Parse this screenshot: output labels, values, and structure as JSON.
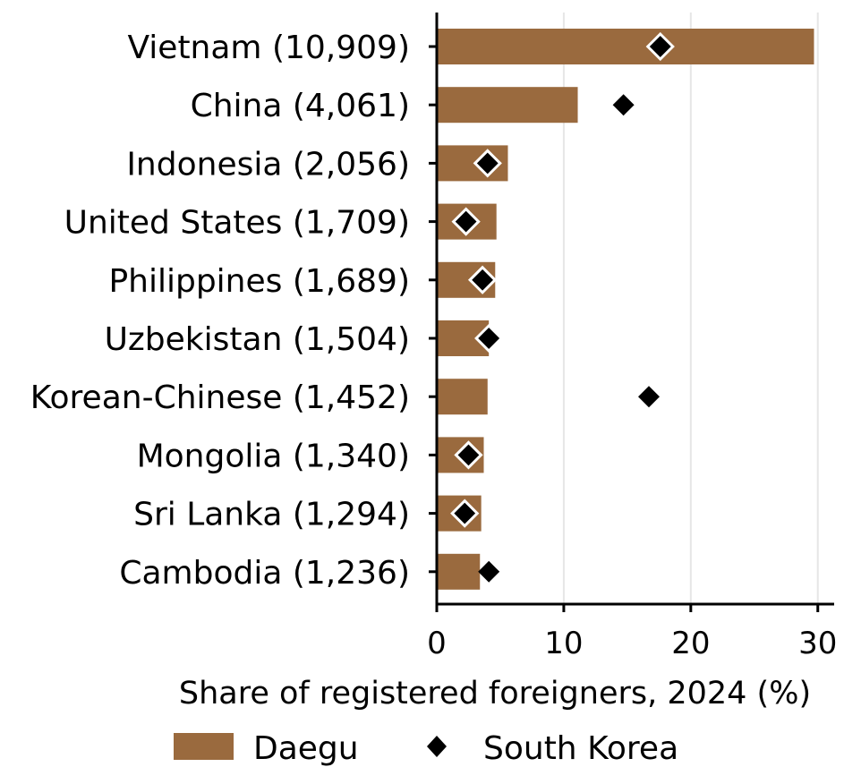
{
  "chart_data": {
    "type": "bar",
    "orientation": "horizontal",
    "categories": [
      "Vietnam (10,909)",
      "China (4,061)",
      "Indonesia (2,056)",
      "United States (1,709)",
      "Philippines (1,689)",
      "Uzbekistan (1,504)",
      "Korean-Chinese (1,452)",
      "Mongolia (1,340)",
      "Sri Lanka (1,294)",
      "Cambodia (1,236)"
    ],
    "series": [
      {
        "name": "Daegu",
        "mark": "bar",
        "color": "#9a6a3e",
        "values": [
          29.7,
          11.1,
          5.6,
          4.7,
          4.6,
          4.1,
          4.0,
          3.7,
          3.5,
          3.4
        ]
      },
      {
        "name": "South Korea",
        "mark": "diamond",
        "color": "#000000",
        "values": [
          17.6,
          14.7,
          4.0,
          2.3,
          3.6,
          4.1,
          16.7,
          2.5,
          2.2,
          4.1
        ]
      }
    ],
    "xlabel": "Share of registered foreigners, 2024 (%)",
    "ylabel": "",
    "xlim": [
      0,
      30.3
    ],
    "xticks": [
      "0",
      "10",
      "20",
      "30"
    ],
    "grid": "vertical",
    "legend_position": "bottom"
  }
}
